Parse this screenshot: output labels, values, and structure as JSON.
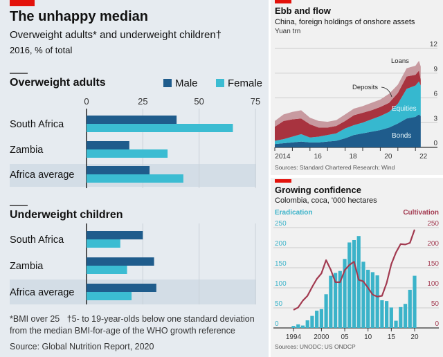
{
  "colors": {
    "red": "#e3120b",
    "male": "#1f5c8c",
    "female": "#3bbcd2",
    "bonds": "#1f5c8c",
    "equities": "#36b8cf",
    "deposits": "#a8333f",
    "loans": "#c89aa0",
    "eradication": "#3bb3c9",
    "cultivation": "#a23a50"
  },
  "chart_data": [
    {
      "type": "bar",
      "orientation": "horizontal",
      "title": "The unhappy median",
      "subtitle": "Overweight adults* and underweight children†",
      "unit": "2016, % of total",
      "legend": [
        "Male",
        "Female"
      ],
      "xticks": [
        "0",
        "25",
        "50",
        "75"
      ],
      "xlim": [
        0,
        75
      ],
      "groups": [
        {
          "name": "Overweight adults",
          "categories": [
            "South Africa",
            "Zambia",
            "Africa average"
          ],
          "series": [
            {
              "name": "Male",
              "values": [
                40,
                19,
                28
              ]
            },
            {
              "name": "Female",
              "values": [
                65,
                36,
                43
              ]
            }
          ]
        },
        {
          "name": "Underweight children",
          "categories": [
            "South Africa",
            "Zambia",
            "Africa average"
          ],
          "series": [
            {
              "name": "Male",
              "values": [
                25,
                30,
                31
              ]
            },
            {
              "name": "Female",
              "values": [
                15,
                18,
                20
              ]
            }
          ]
        }
      ],
      "footnote1": "*BMI over 25",
      "footnote2": "†5- to 19-year-olds below one standard deviation",
      "footnote3": "from the median BMI-for-age of the WHO growth reference",
      "source": "Source: Global Nutrition Report, 2020"
    },
    {
      "type": "area",
      "stacked": true,
      "title": "Ebb and flow",
      "subtitle": "China, foreign holdings of onshore assets",
      "ylabel": "Yuan trn",
      "ylim": [
        0,
        12
      ],
      "yticks": [
        "0",
        "3",
        "6",
        "9",
        "12"
      ],
      "xticks": [
        "2014",
        "16",
        "18",
        "20",
        "22"
      ],
      "x": [
        2014,
        2014.5,
        2015,
        2015.5,
        2016,
        2016.5,
        2017,
        2017.5,
        2018,
        2018.5,
        2019,
        2019.5,
        2020,
        2020.5,
        2021,
        2021.5,
        2022,
        2022.2,
        2022.3
      ],
      "series": [
        {
          "name": "Bonds",
          "values": [
            0.4,
            0.5,
            0.6,
            0.7,
            0.6,
            0.6,
            0.7,
            0.8,
            1.1,
            1.5,
            1.7,
            1.9,
            2.1,
            2.4,
            2.9,
            3.5,
            3.7,
            4.0,
            3.8
          ]
        },
        {
          "name": "Equities",
          "values": [
            0.4,
            0.5,
            0.7,
            0.9,
            0.6,
            0.7,
            0.8,
            0.9,
            1.2,
            1.2,
            1.3,
            1.5,
            1.7,
            1.9,
            2.4,
            3.6,
            3.8,
            4.0,
            3.7
          ]
        },
        {
          "name": "Deposits",
          "values": [
            1.7,
            2.2,
            2.1,
            1.9,
            1.6,
            1.1,
            0.9,
            0.9,
            0.9,
            1.2,
            1.2,
            1.1,
            1.1,
            1.1,
            1.3,
            1.5,
            1.3,
            1.3,
            0.7
          ]
        },
        {
          "name": "Loans",
          "values": [
            0.7,
            0.8,
            0.9,
            1.0,
            0.8,
            0.8,
            0.7,
            0.7,
            0.8,
            0.8,
            0.8,
            0.9,
            0.9,
            1.1,
            1.0,
            1.0,
            1.1,
            1.2,
            1.6
          ]
        }
      ],
      "source": "Sources: Standard Chartered Research; Wind"
    },
    {
      "type": "bar+line",
      "title": "Growing confidence",
      "subtitle": "Colombia, coca, '000 hectares",
      "left_axis": "Eradication",
      "right_axis": "Cultivation",
      "ylim": [
        0,
        250
      ],
      "yticks": [
        "0",
        "50",
        "100",
        "150",
        "200",
        "250"
      ],
      "xticks": [
        "1994",
        "2000",
        "05",
        "10",
        "15",
        "20"
      ],
      "x": [
        1994,
        1995,
        1996,
        1997,
        1998,
        1999,
        2000,
        2001,
        2002,
        2003,
        2004,
        2005,
        2006,
        2007,
        2008,
        2009,
        2010,
        2011,
        2012,
        2013,
        2014,
        2015,
        2016,
        2017,
        2018,
        2019,
        2020
      ],
      "eradication": [
        5,
        9,
        6,
        19,
        30,
        43,
        47,
        84,
        130,
        137,
        142,
        172,
        213,
        219,
        229,
        165,
        145,
        139,
        131,
        69,
        67,
        51,
        18,
        52,
        60,
        95,
        130
      ],
      "cultivation": [
        45,
        51,
        68,
        80,
        102,
        122,
        136,
        169,
        145,
        114,
        114,
        144,
        157,
        165,
        120,
        116,
        100,
        83,
        78,
        80,
        112,
        159,
        188,
        209,
        208,
        212,
        245
      ],
      "source": "Sources: UNODC; US ONDCP"
    }
  ],
  "labels": {
    "loans": "Loans",
    "deposits": "Deposits",
    "equities": "Equities",
    "bonds": "Bonds"
  }
}
